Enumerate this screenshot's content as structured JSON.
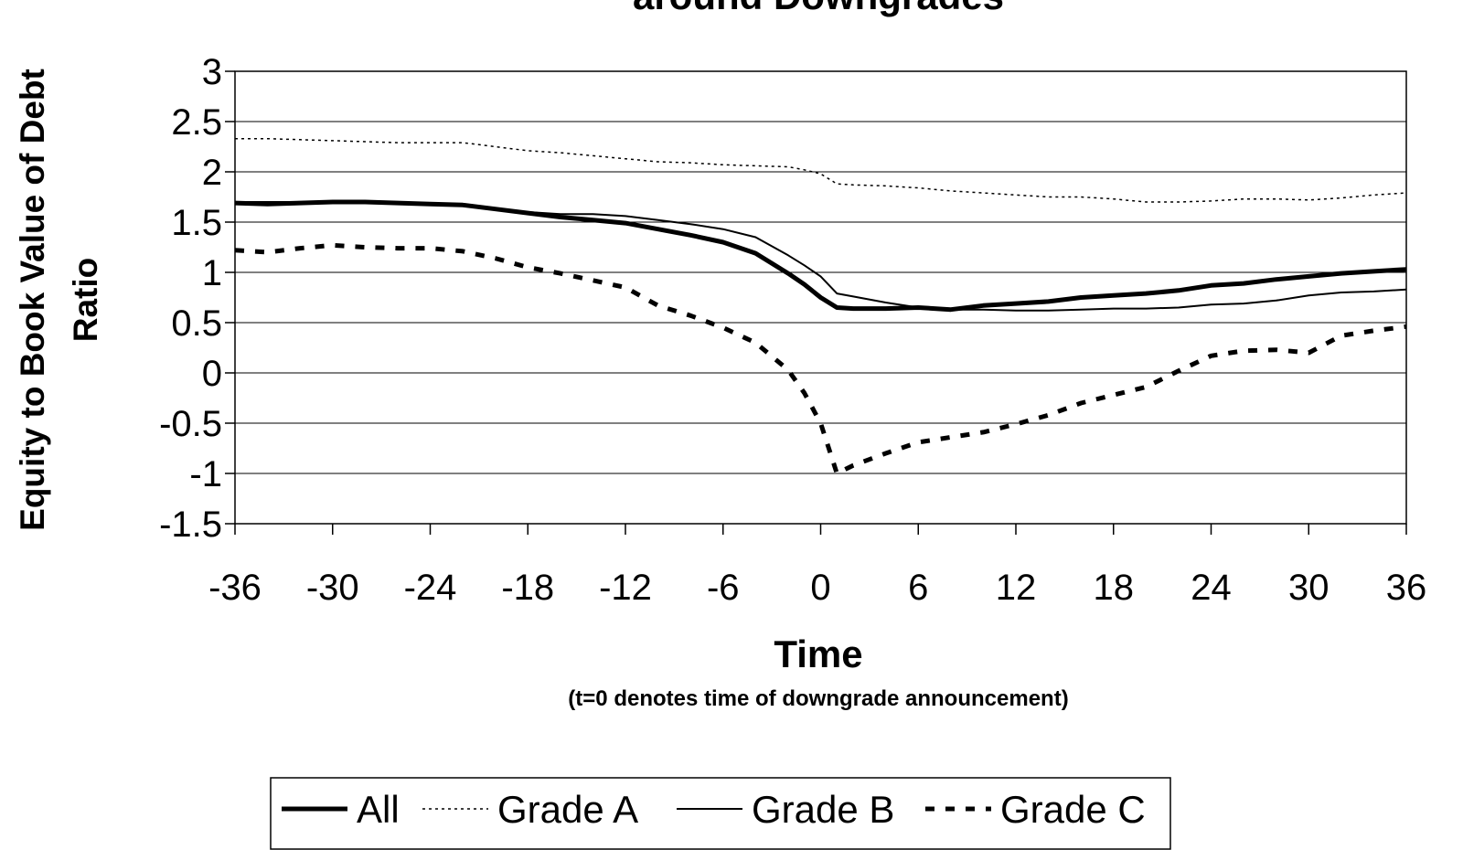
{
  "chart_data": {
    "type": "line",
    "title": "around Downgrades",
    "ylabel_lines": [
      "Equity to Book Value of Debt",
      "Ratio"
    ],
    "xlabel": "Time",
    "xsublabel": "(t=0 denotes time of downgrade announcement)",
    "xlim": [
      -36,
      36
    ],
    "ylim": [
      -1.5,
      3
    ],
    "xticks": [
      -36,
      -30,
      -24,
      -18,
      -12,
      -6,
      0,
      6,
      12,
      18,
      24,
      30,
      36
    ],
    "yticks": [
      -1.5,
      -1,
      -0.5,
      0,
      0.5,
      1,
      1.5,
      2,
      2.5,
      3
    ],
    "xtick_labels": [
      "-36",
      "-30",
      "-24",
      "-18",
      "-12",
      "-6",
      "0",
      "6",
      "12",
      "18",
      "24",
      "30",
      "36"
    ],
    "ytick_labels": [
      "-1.5",
      "-1",
      "-0.5",
      "0",
      "0.5",
      "1",
      "1.5",
      "2",
      "2.5",
      "3"
    ],
    "grid": "horizontal",
    "legend_position": "bottom",
    "x": [
      -36,
      -34,
      -32,
      -30,
      -28,
      -26,
      -24,
      -22,
      -20,
      -18,
      -16,
      -14,
      -12,
      -10,
      -8,
      -6,
      -4,
      -2,
      -1,
      0,
      1,
      2,
      4,
      6,
      8,
      10,
      12,
      14,
      16,
      18,
      20,
      22,
      24,
      26,
      28,
      30,
      32,
      34,
      36
    ],
    "series": [
      {
        "name": "All",
        "style": "thick",
        "values": [
          1.69,
          1.68,
          1.69,
          1.7,
          1.7,
          1.69,
          1.68,
          1.67,
          1.63,
          1.59,
          1.55,
          1.52,
          1.49,
          1.43,
          1.37,
          1.3,
          1.19,
          0.99,
          0.88,
          0.75,
          0.65,
          0.64,
          0.64,
          0.65,
          0.63,
          0.67,
          0.69,
          0.71,
          0.75,
          0.77,
          0.79,
          0.82,
          0.87,
          0.89,
          0.93,
          0.96,
          0.99,
          1.01,
          1.03
        ]
      },
      {
        "name": "Grade A",
        "style": "dotted",
        "values": [
          2.33,
          2.33,
          2.32,
          2.31,
          2.3,
          2.29,
          2.29,
          2.29,
          2.25,
          2.21,
          2.19,
          2.16,
          2.13,
          2.1,
          2.09,
          2.07,
          2.06,
          2.05,
          2.02,
          1.98,
          1.88,
          1.87,
          1.86,
          1.84,
          1.81,
          1.79,
          1.77,
          1.75,
          1.75,
          1.73,
          1.7,
          1.7,
          1.71,
          1.73,
          1.73,
          1.72,
          1.74,
          1.77,
          1.79
        ]
      },
      {
        "name": "Grade B",
        "style": "thin",
        "values": [
          1.7,
          1.7,
          1.7,
          1.7,
          1.7,
          1.69,
          1.69,
          1.68,
          1.64,
          1.6,
          1.58,
          1.58,
          1.56,
          1.52,
          1.48,
          1.43,
          1.35,
          1.17,
          1.07,
          0.96,
          0.79,
          0.76,
          0.7,
          0.65,
          0.63,
          0.63,
          0.62,
          0.62,
          0.63,
          0.64,
          0.64,
          0.65,
          0.68,
          0.69,
          0.72,
          0.77,
          0.8,
          0.81,
          0.83
        ]
      },
      {
        "name": "Grade C",
        "style": "dashed",
        "values": [
          1.22,
          1.2,
          1.24,
          1.27,
          1.25,
          1.24,
          1.24,
          1.21,
          1.14,
          1.05,
          0.99,
          0.92,
          0.85,
          0.67,
          0.57,
          0.45,
          0.3,
          0.03,
          -0.2,
          -0.5,
          -1.0,
          -0.92,
          -0.8,
          -0.69,
          -0.64,
          -0.59,
          -0.51,
          -0.42,
          -0.3,
          -0.22,
          -0.14,
          0.02,
          0.17,
          0.22,
          0.23,
          0.2,
          0.37,
          0.42,
          0.46
        ]
      }
    ]
  }
}
